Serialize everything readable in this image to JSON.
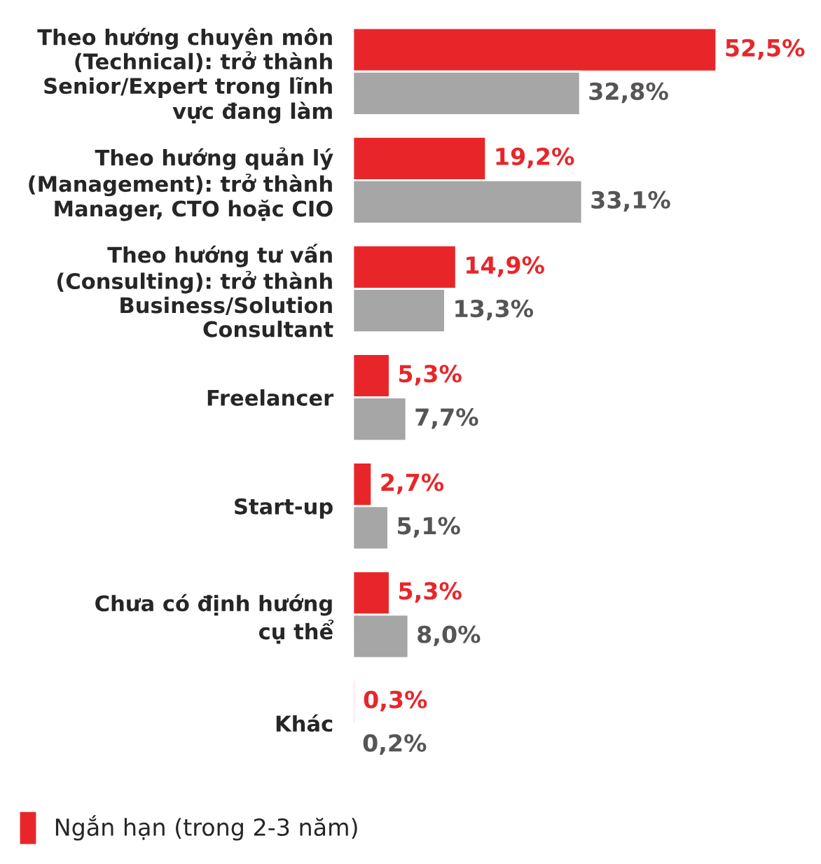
{
  "chart_data": {
    "type": "bar",
    "orientation": "horizontal",
    "categories": [
      "Theo hướng chuyên môn\n(Technical): trở thành\nSenior/Expert trong lĩnh\nvực đang làm",
      "Theo hướng quản lý\n(Management): trở thành\nManager, CTO hoặc CIO",
      "Theo hướng tư vấn\n(Consulting): trở thành\nBusiness/Solution\nConsultant",
      "Freelancer",
      "Start-up",
      "Chưa có định hướng\ncụ thể",
      "Khác"
    ],
    "series": [
      {
        "name": "Ngắn hạn (trong 2-3 năm)",
        "color": "#e8262a",
        "values": [
          52.5,
          19.2,
          14.9,
          5.3,
          2.7,
          5.3,
          0.3
        ],
        "value_labels": [
          "52,5%",
          "19,2%",
          "14,9%",
          "5,3%",
          "2,7%",
          "5,3%",
          "0,3%"
        ]
      },
      {
        "color": "#a6a6a6",
        "values": [
          32.8,
          33.1,
          13.3,
          7.7,
          5.1,
          8.0,
          0.2
        ],
        "value_labels": [
          "32,8%",
          "33,1%",
          "13,3%",
          "7,7%",
          "5,1%",
          "8,0%",
          "0,2%"
        ]
      }
    ],
    "legend": "bottom left"
  }
}
